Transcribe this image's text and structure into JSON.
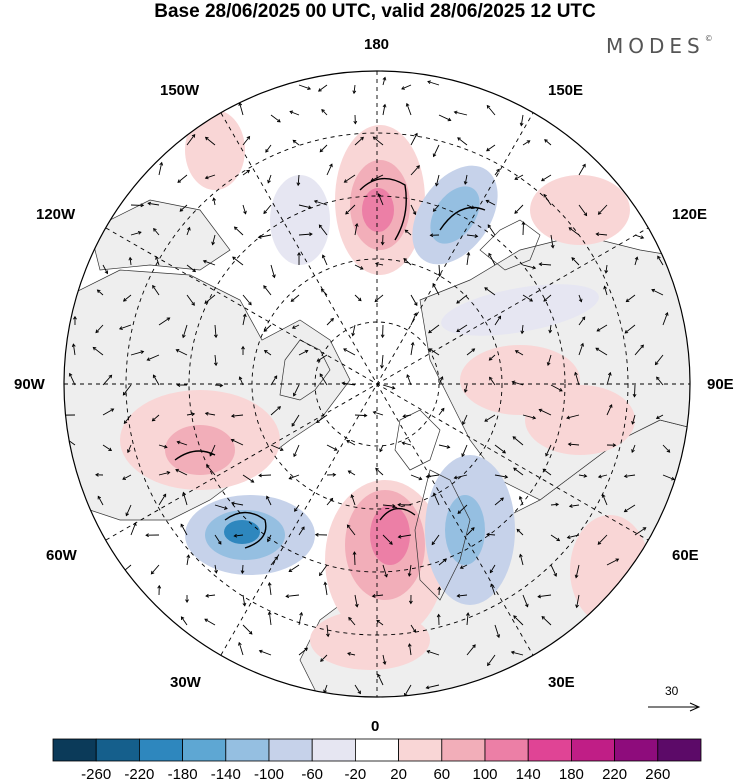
{
  "title": "Base 28/06/2025 00 UTC, valid 28/06/2025 12 UTC",
  "brand": "MODES",
  "brand_mark": "©",
  "lon_labels": {
    "n": "180",
    "s": "0",
    "w": "90W",
    "e": "90E",
    "w150": "150W",
    "e150": "150E",
    "w120": "120W",
    "e120": "120E",
    "w60": "60W",
    "e60": "60E",
    "w30": "30W",
    "e30": "30E"
  },
  "vector_scale": "30",
  "colorbar": {
    "labels": [
      "-260",
      "-220",
      "-180",
      "-140",
      "-100",
      "-60",
      "-20",
      "20",
      "60",
      "100",
      "140",
      "180",
      "220",
      "260"
    ],
    "colors": [
      "#0b3a59",
      "#155f8c",
      "#2e87be",
      "#5ea7d3",
      "#95bfe1",
      "#c6d2ea",
      "#e6e6f2",
      "#ffffff",
      "#f9d6d6",
      "#f2aeb9",
      "#ec7fa6",
      "#e04495",
      "#c01e86",
      "#8e0c7c",
      "#5c0a68"
    ]
  }
}
